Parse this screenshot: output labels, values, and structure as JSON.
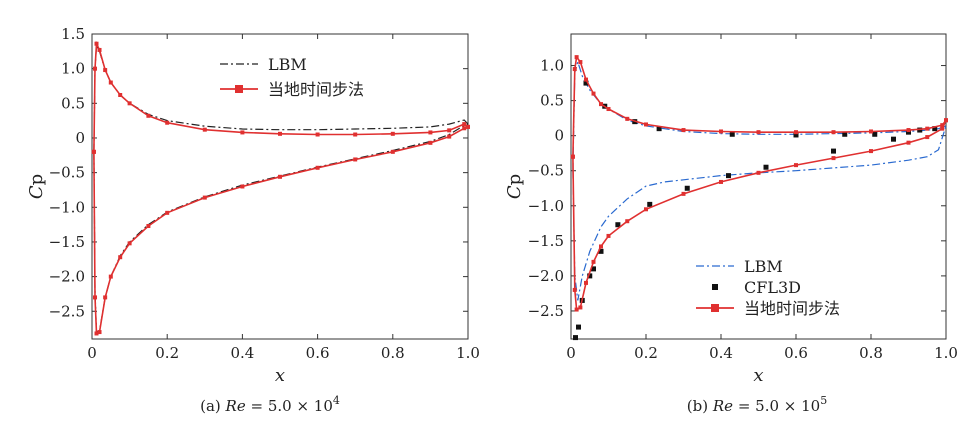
{
  "figure": {
    "captions": [
      {
        "prefix": "(a) ",
        "re_label": "Re",
        "re_value": " = 5.0 × 10",
        "exponent": "4"
      },
      {
        "prefix": "(b) ",
        "re_label": "Re",
        "re_value": " = 5.0 × 10",
        "exponent": "5"
      }
    ]
  },
  "chart_data": [
    {
      "type": "line",
      "ylabel": "Cp",
      "xlabel": "x",
      "xlim": [
        0,
        1.0
      ],
      "ylim": [
        -2.9,
        1.5
      ],
      "xticks": [
        0,
        0.2,
        0.4,
        0.6,
        0.8,
        1.0
      ],
      "xtick_labels": [
        "0",
        "0.2",
        "0.4",
        "0.6",
        "0.8",
        "1.0"
      ],
      "yticks": [
        1.5,
        1.0,
        0.5,
        0,
        -0.5,
        -1.0,
        -1.5,
        -2.0,
        -2.5
      ],
      "ytick_labels": [
        "1.5",
        "1.0",
        "0.5",
        "0",
        "−0.5",
        "−1.0",
        "−1.5",
        "−2.0",
        "−2.5"
      ],
      "legend": {
        "placement": "upper-center",
        "entries": [
          "LBM",
          "当地时间步法"
        ]
      },
      "series": [
        {
          "name": "LBM",
          "style": "dash-dot",
          "color": "#222222",
          "upper": [
            [
              0.005,
              -0.2
            ],
            [
              0.008,
              1.0
            ],
            [
              0.012,
              1.33
            ],
            [
              0.02,
              1.25
            ],
            [
              0.035,
              0.98
            ],
            [
              0.05,
              0.8
            ],
            [
              0.075,
              0.62
            ],
            [
              0.1,
              0.5
            ],
            [
              0.15,
              0.34
            ],
            [
              0.2,
              0.25
            ],
            [
              0.3,
              0.17
            ],
            [
              0.4,
              0.13
            ],
            [
              0.5,
              0.12
            ],
            [
              0.6,
              0.12
            ],
            [
              0.7,
              0.13
            ],
            [
              0.8,
              0.14
            ],
            [
              0.9,
              0.16
            ],
            [
              0.95,
              0.2
            ],
            [
              0.99,
              0.26
            ],
            [
              1.0,
              0.2
            ]
          ],
          "lower": [
            [
              0.005,
              -0.2
            ],
            [
              0.008,
              -2.2
            ],
            [
              0.012,
              -2.8
            ],
            [
              0.02,
              -2.78
            ],
            [
              0.035,
              -2.3
            ],
            [
              0.05,
              -2.0
            ],
            [
              0.075,
              -1.7
            ],
            [
              0.1,
              -1.5
            ],
            [
              0.15,
              -1.25
            ],
            [
              0.2,
              -1.07
            ],
            [
              0.3,
              -0.85
            ],
            [
              0.4,
              -0.68
            ],
            [
              0.5,
              -0.55
            ],
            [
              0.6,
              -0.42
            ],
            [
              0.7,
              -0.3
            ],
            [
              0.8,
              -0.18
            ],
            [
              0.9,
              -0.05
            ],
            [
              0.95,
              0.05
            ],
            [
              0.99,
              0.18
            ],
            [
              1.0,
              0.2
            ]
          ]
        },
        {
          "name": "当地时间步法",
          "style": "line-markers",
          "color": "#e03030",
          "upper": [
            [
              0.005,
              -0.2
            ],
            [
              0.008,
              1.0
            ],
            [
              0.012,
              1.36
            ],
            [
              0.02,
              1.27
            ],
            [
              0.035,
              0.98
            ],
            [
              0.05,
              0.8
            ],
            [
              0.075,
              0.62
            ],
            [
              0.1,
              0.5
            ],
            [
              0.15,
              0.32
            ],
            [
              0.2,
              0.22
            ],
            [
              0.3,
              0.12
            ],
            [
              0.4,
              0.08
            ],
            [
              0.5,
              0.06
            ],
            [
              0.6,
              0.05
            ],
            [
              0.7,
              0.05
            ],
            [
              0.8,
              0.06
            ],
            [
              0.9,
              0.08
            ],
            [
              0.95,
              0.11
            ],
            [
              0.99,
              0.2
            ],
            [
              1.0,
              0.16
            ]
          ],
          "lower": [
            [
              0.005,
              -0.2
            ],
            [
              0.008,
              -2.3
            ],
            [
              0.012,
              -2.82
            ],
            [
              0.02,
              -2.8
            ],
            [
              0.035,
              -2.3
            ],
            [
              0.05,
              -2.0
            ],
            [
              0.075,
              -1.72
            ],
            [
              0.1,
              -1.52
            ],
            [
              0.15,
              -1.27
            ],
            [
              0.2,
              -1.08
            ],
            [
              0.3,
              -0.86
            ],
            [
              0.4,
              -0.7
            ],
            [
              0.5,
              -0.56
            ],
            [
              0.6,
              -0.43
            ],
            [
              0.7,
              -0.31
            ],
            [
              0.8,
              -0.2
            ],
            [
              0.9,
              -0.07
            ],
            [
              0.95,
              0.02
            ],
            [
              0.99,
              0.14
            ],
            [
              1.0,
              0.16
            ]
          ]
        }
      ]
    },
    {
      "type": "line",
      "ylabel": "Cp",
      "xlabel": "x",
      "xlim": [
        0,
        1.0
      ],
      "ylim": [
        -2.9,
        1.45
      ],
      "xticks": [
        0,
        0.2,
        0.4,
        0.6,
        0.8,
        1.0
      ],
      "xtick_labels": [
        "0",
        "0.2",
        "0.4",
        "0.6",
        "0.8",
        "1.0"
      ],
      "yticks": [
        1.0,
        0.5,
        0,
        -0.5,
        -1.0,
        -1.5,
        -2.0,
        -2.5
      ],
      "ytick_labels": [
        "1.0",
        "0.5",
        "0",
        "−0.5",
        "−1.0",
        "−1.5",
        "−2.0",
        "−2.5"
      ],
      "legend": {
        "placement": "lower-center",
        "entries": [
          "LBM",
          "CFL3D",
          "当地时间步法"
        ]
      },
      "series": [
        {
          "name": "LBM",
          "style": "dash-dot",
          "color": "#2a6ad0",
          "upper": [
            [
              0.005,
              -0.5
            ],
            [
              0.01,
              0.9
            ],
            [
              0.018,
              1.05
            ],
            [
              0.03,
              0.85
            ],
            [
              0.05,
              0.65
            ],
            [
              0.08,
              0.45
            ],
            [
              0.1,
              0.38
            ],
            [
              0.15,
              0.22
            ],
            [
              0.2,
              0.14
            ],
            [
              0.3,
              0.06
            ],
            [
              0.4,
              0.03
            ],
            [
              0.5,
              0.02
            ],
            [
              0.6,
              0.02
            ],
            [
              0.7,
              0.03
            ],
            [
              0.8,
              0.04
            ],
            [
              0.9,
              0.06
            ],
            [
              0.95,
              0.08
            ],
            [
              0.98,
              0.1
            ],
            [
              1.0,
              0.14
            ]
          ],
          "lower": [
            [
              0.005,
              -0.5
            ],
            [
              0.01,
              -2.0
            ],
            [
              0.018,
              -2.35
            ],
            [
              0.03,
              -2.0
            ],
            [
              0.05,
              -1.65
            ],
            [
              0.08,
              -1.3
            ],
            [
              0.1,
              -1.15
            ],
            [
              0.15,
              -0.9
            ],
            [
              0.2,
              -0.72
            ],
            [
              0.25,
              -0.66
            ],
            [
              0.3,
              -0.63
            ],
            [
              0.4,
              -0.57
            ],
            [
              0.5,
              -0.53
            ],
            [
              0.6,
              -0.5
            ],
            [
              0.7,
              -0.46
            ],
            [
              0.8,
              -0.42
            ],
            [
              0.9,
              -0.35
            ],
            [
              0.95,
              -0.3
            ],
            [
              0.98,
              -0.2
            ],
            [
              1.0,
              0.14
            ]
          ]
        },
        {
          "name": "CFL3D",
          "style": "scatter",
          "color": "#111111",
          "points": [
            [
              0.012,
              -2.88
            ],
            [
              0.02,
              -2.73
            ],
            [
              0.03,
              -2.35
            ],
            [
              0.04,
              0.75
            ],
            [
              0.05,
              -2.0
            ],
            [
              0.06,
              -1.9
            ],
            [
              0.08,
              -1.65
            ],
            [
              0.09,
              0.42
            ],
            [
              0.125,
              -1.27
            ],
            [
              0.17,
              0.2
            ],
            [
              0.21,
              -0.98
            ],
            [
              0.235,
              0.1
            ],
            [
              0.31,
              -0.75
            ],
            [
              0.42,
              -0.57
            ],
            [
              0.43,
              0.02
            ],
            [
              0.52,
              -0.45
            ],
            [
              0.6,
              0.01
            ],
            [
              0.7,
              -0.22
            ],
            [
              0.73,
              0.02
            ],
            [
              0.81,
              0.02
            ],
            [
              0.86,
              -0.05
            ],
            [
              0.9,
              0.05
            ],
            [
              0.93,
              0.08
            ],
            [
              0.97,
              0.1
            ]
          ]
        },
        {
          "name": "当地时间步法",
          "style": "line-markers",
          "color": "#e03030",
          "upper": [
            [
              0.005,
              -0.3
            ],
            [
              0.01,
              0.95
            ],
            [
              0.015,
              1.12
            ],
            [
              0.025,
              1.05
            ],
            [
              0.04,
              0.8
            ],
            [
              0.06,
              0.6
            ],
            [
              0.08,
              0.45
            ],
            [
              0.1,
              0.38
            ],
            [
              0.15,
              0.24
            ],
            [
              0.2,
              0.16
            ],
            [
              0.3,
              0.08
            ],
            [
              0.4,
              0.06
            ],
            [
              0.5,
              0.05
            ],
            [
              0.6,
              0.05
            ],
            [
              0.7,
              0.05
            ],
            [
              0.8,
              0.06
            ],
            [
              0.9,
              0.08
            ],
            [
              0.95,
              0.1
            ],
            [
              0.99,
              0.15
            ],
            [
              1.0,
              0.22
            ]
          ],
          "lower": [
            [
              0.005,
              -0.3
            ],
            [
              0.01,
              -2.2
            ],
            [
              0.015,
              -2.48
            ],
            [
              0.025,
              -2.45
            ],
            [
              0.04,
              -2.1
            ],
            [
              0.06,
              -1.8
            ],
            [
              0.08,
              -1.58
            ],
            [
              0.1,
              -1.43
            ],
            [
              0.15,
              -1.22
            ],
            [
              0.2,
              -1.05
            ],
            [
              0.3,
              -0.83
            ],
            [
              0.4,
              -0.66
            ],
            [
              0.5,
              -0.53
            ],
            [
              0.6,
              -0.42
            ],
            [
              0.7,
              -0.32
            ],
            [
              0.8,
              -0.22
            ],
            [
              0.9,
              -0.1
            ],
            [
              0.95,
              -0.02
            ],
            [
              0.99,
              0.1
            ],
            [
              1.0,
              0.22
            ]
          ]
        }
      ]
    }
  ]
}
